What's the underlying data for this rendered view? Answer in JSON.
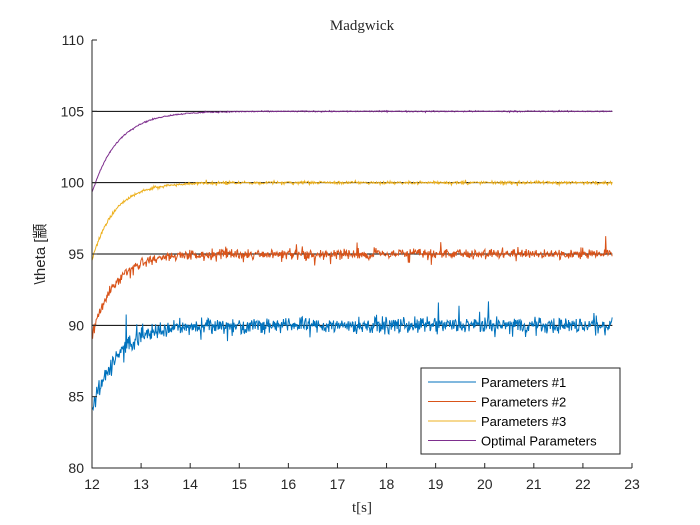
{
  "chart_data": {
    "type": "line",
    "title": "Madgwick",
    "xlabel": "t[s]",
    "ylabel": "\\theta [顓",
    "xlim": [
      12,
      23
    ],
    "ylim": [
      80,
      110
    ],
    "xticks": [
      12,
      13,
      14,
      15,
      16,
      17,
      18,
      19,
      20,
      21,
      22,
      23
    ],
    "yticks": [
      80,
      85,
      90,
      95,
      100,
      105,
      110
    ],
    "grid": false,
    "legend_position": "bottom-right",
    "reference_lines": [
      {
        "y": 90,
        "x": [
          12,
          22.6
        ],
        "color": "#000000"
      },
      {
        "y": 95,
        "x": [
          12,
          22.6
        ],
        "color": "#000000"
      },
      {
        "y": 100,
        "x": [
          12,
          22.6
        ],
        "color": "#000000"
      },
      {
        "y": 105,
        "x": [
          12,
          22.6
        ],
        "color": "#000000"
      }
    ],
    "series": [
      {
        "name": "Parameters #1",
        "color": "#0072BD",
        "start": 84,
        "target": 90,
        "settle": 13.5,
        "x_end": 22.6,
        "noise": 0.55
      },
      {
        "name": "Parameters #2",
        "color": "#D95319",
        "start": 89.3,
        "target": 95,
        "settle": 13.4,
        "x_end": 22.6,
        "noise": 0.35
      },
      {
        "name": "Parameters #3",
        "color": "#EDB120",
        "start": 94.6,
        "target": 100,
        "settle": 13.4,
        "x_end": 22.6,
        "noise": 0.1
      },
      {
        "name": "Optimal Parameters",
        "color": "#7E2F8E",
        "start": 99.3,
        "target": 105,
        "settle": 13.6,
        "x_end": 22.6,
        "noise": 0.04
      }
    ]
  }
}
